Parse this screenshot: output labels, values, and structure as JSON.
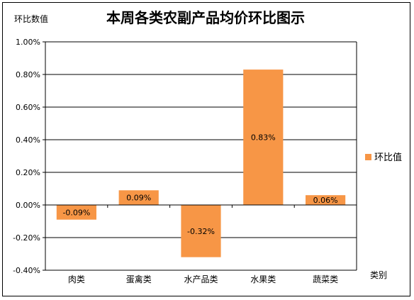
{
  "chart_data": {
    "type": "bar",
    "title": "本周各类农副产品均价环比图示",
    "ylabel": "环比数值",
    "xlabel": "类别",
    "categories": [
      "肉类",
      "蛋禽类",
      "水产品类",
      "水果类",
      "蔬菜类"
    ],
    "series": [
      {
        "name": "环比值",
        "values": [
          -0.09,
          0.09,
          -0.32,
          0.83,
          0.06
        ],
        "color": "#F79646"
      }
    ],
    "data_labels": [
      "-0.09%",
      "0.09%",
      "-0.32%",
      "0.83%",
      "0.06%"
    ],
    "ylim": [
      -0.4,
      1.0
    ],
    "yticks": [
      "1.00%",
      "0.80%",
      "0.60%",
      "0.40%",
      "0.20%",
      "0.00%",
      "-0.20%",
      "-0.40%"
    ],
    "grid": true,
    "legend": "right"
  }
}
